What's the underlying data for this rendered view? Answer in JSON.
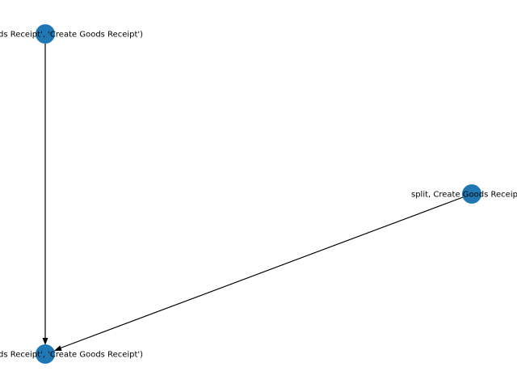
{
  "graph": {
    "nodes": [
      {
        "id": "n-top-left",
        "label": "('Create Goods Receipt', 'Create Goods Receipt')"
      },
      {
        "id": "n-right",
        "label": "split, Create Goods Receipt"
      },
      {
        "id": "n-bottom-left",
        "label": "('Create Goods Receipt', 'Create Goods Receipt')"
      }
    ],
    "edges": [
      {
        "from": "n-top-left",
        "to": "n-bottom-left"
      },
      {
        "from": "n-right",
        "to": "n-bottom-left"
      }
    ],
    "colors": {
      "node": "#1f77b4",
      "edge": "#000000",
      "label": "#000000"
    }
  }
}
